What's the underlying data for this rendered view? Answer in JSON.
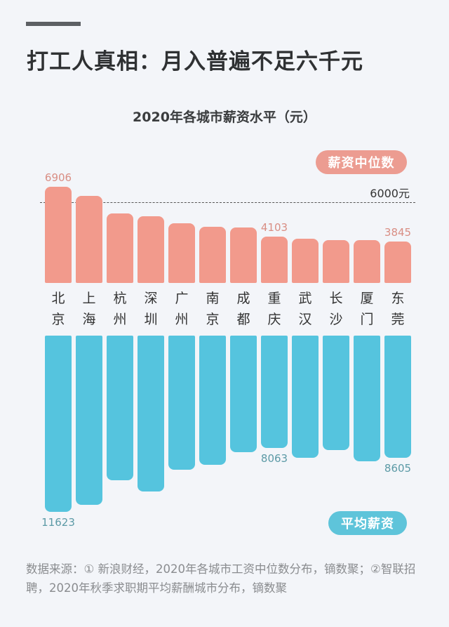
{
  "header": {
    "title": "打工人真相：月入普遍不足六千元",
    "subtitle": "2020年各城市薪资水平（元）"
  },
  "legend": {
    "median_label": "薪资中位数",
    "average_label": "平均薪资",
    "median_color": "#f29a8c",
    "average_color": "#55c4de"
  },
  "reference": {
    "label": "6000元",
    "value": 6000
  },
  "footer": {
    "source": "数据来源：① 新浪财经，2020年各城市工资中位数分布，镝数聚；②智联招聘，2020年秋季求职期平均薪酬城市分布，镝数聚"
  },
  "chart_data": {
    "type": "bar",
    "title": "2020年各城市薪资水平（元）",
    "xlabel": "",
    "ylabel": "元",
    "categories": [
      "北京",
      "上海",
      "杭州",
      "深圳",
      "广州",
      "南京",
      "成都",
      "重庆",
      "武汉",
      "长沙",
      "厦门",
      "东莞"
    ],
    "series": [
      {
        "name": "薪资中位数",
        "values": [
          6906,
          6380,
          5400,
          5250,
          4860,
          4660,
          4620,
          4103,
          4000,
          3920,
          3920,
          3845
        ]
      },
      {
        "name": "平均薪资",
        "values": [
          11623,
          11230,
          9860,
          10490,
          9270,
          9000,
          8290,
          8063,
          8610,
          8180,
          8800,
          8605
        ]
      }
    ],
    "labeled_points": {
      "薪资中位数": {
        "北京": "6906",
        "重庆": "4103",
        "东莞": "3845"
      },
      "平均薪资": {
        "北京": "11623",
        "重庆": "8063",
        "东莞": "8605"
      }
    },
    "reference_line": {
      "value": 6000,
      "label": "6000元",
      "style": "dashed"
    },
    "layout": "mirrored bars: median above city labels, average hanging below",
    "grid": false,
    "legend_position": "pills at top-right (median) and bottom-right (average)"
  }
}
